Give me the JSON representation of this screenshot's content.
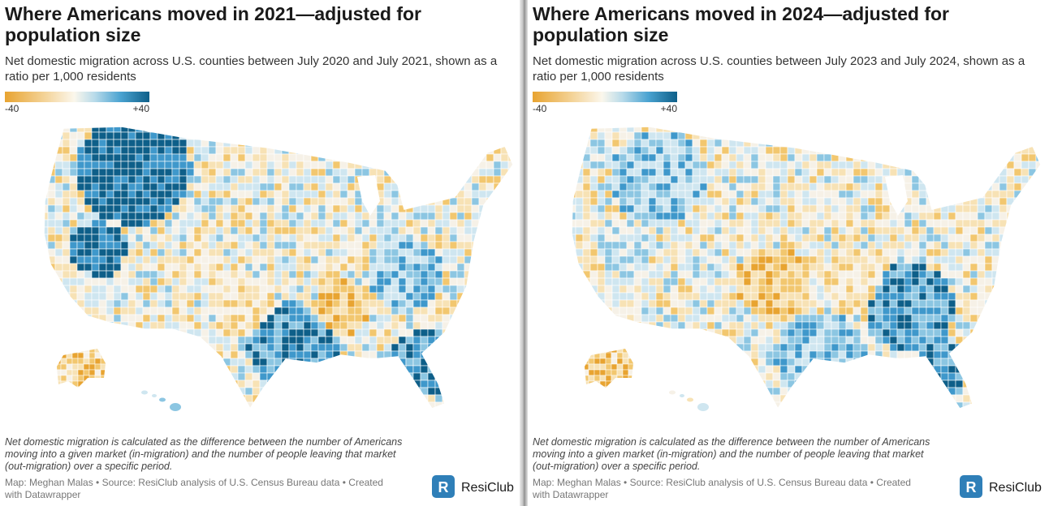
{
  "panels": [
    {
      "title": "Where Americans moved in 2021—adjusted for population size",
      "subtitle": "Net domestic migration across U.S. counties between July 2020 and July 2021, shown as a ratio per 1,000 residents",
      "legend": {
        "min_label": "-40",
        "max_label": "+40"
      },
      "note": "Net domestic migration is calculated as the difference between the number of Americans moving into a given market (in-migration) and the number of people leaving that market (out-migration) over a specific period.",
      "credit": "Map: Meghan Malas • Source: ResiClub analysis of U.S. Census Bureau data • Created with Datawrapper",
      "brand": "ResiClub"
    },
    {
      "title": "Where Americans moved in 2024—adjusted for population size",
      "subtitle": "Net domestic migration across U.S. counties between July 2023 and July 2024, shown as a ratio per 1,000 residents",
      "legend": {
        "min_label": "-40",
        "max_label": "+40"
      },
      "note": "Net domestic migration is calculated as the difference between the number of Americans moving into a given market (in-migration) and the number of people leaving that market (out-migration) over a specific period.",
      "credit": "Map: Meghan Malas • Source: ResiClub analysis of U.S. Census Bureau data • Created with Datawrapper",
      "brand": "ResiClub"
    }
  ],
  "colors": {
    "scale": [
      "#e8a431",
      "#f2c76f",
      "#f7e2b5",
      "#f6f1e7",
      "#cfe6f0",
      "#8cc6e2",
      "#3f98cb",
      "#0e5f89"
    ],
    "logo": "#2f7fb8"
  }
}
